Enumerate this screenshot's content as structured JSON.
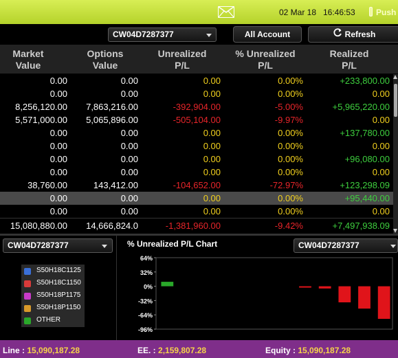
{
  "header": {
    "date": "02 Mar 18",
    "time": "16:46:53",
    "push_label": "Push"
  },
  "toolbar": {
    "account": "CW04D7287377",
    "all_account_label": "All Account",
    "refresh_label": "Refresh"
  },
  "table": {
    "columns": [
      {
        "line1": "Market",
        "line2": "Value"
      },
      {
        "line1": "Options",
        "line2": "Value"
      },
      {
        "line1": "Unrealized",
        "line2": "P/L"
      },
      {
        "line1": "% Unrealized",
        "line2": "P/L"
      },
      {
        "line1": "Realized",
        "line2": "P/L"
      }
    ],
    "rows": [
      {
        "market": "0.00",
        "options": "0.00",
        "unrealized": "0.00",
        "pct": "0.00%",
        "realized": "+233,800.00"
      },
      {
        "market": "0.00",
        "options": "0.00",
        "unrealized": "0.00",
        "pct": "0.00%",
        "realized": "0.00"
      },
      {
        "market": "8,256,120.00",
        "options": "7,863,216.00",
        "unrealized": "-392,904.00",
        "pct": "-5.00%",
        "realized": "+5,965,220.00"
      },
      {
        "market": "5,571,000.00",
        "options": "5,065,896.00",
        "unrealized": "-505,104.00",
        "pct": "-9.97%",
        "realized": "0.00"
      },
      {
        "market": "0.00",
        "options": "0.00",
        "unrealized": "0.00",
        "pct": "0.00%",
        "realized": "+137,780.00"
      },
      {
        "market": "0.00",
        "options": "0.00",
        "unrealized": "0.00",
        "pct": "0.00%",
        "realized": "0.00"
      },
      {
        "market": "0.00",
        "options": "0.00",
        "unrealized": "0.00",
        "pct": "0.00%",
        "realized": "+96,080.00"
      },
      {
        "market": "0.00",
        "options": "0.00",
        "unrealized": "0.00",
        "pct": "0.00%",
        "realized": "0.00"
      },
      {
        "market": "38,760.00",
        "options": "143,412.00",
        "unrealized": "-104,652.00",
        "pct": "-72.97%",
        "realized": "+123,298.09"
      },
      {
        "market": "0.00",
        "options": "0.00",
        "unrealized": "0.00",
        "pct": "0.00%",
        "realized": "+95,440.00"
      },
      {
        "market": "0.00",
        "options": "0.00",
        "unrealized": "0.00",
        "pct": "0.00%",
        "realized": "0.00"
      }
    ],
    "total": {
      "market": "15,080,880.00",
      "options": "14,666,824.0",
      "unrealized": "-1,381,960.00",
      "pct": "-9.42%",
      "realized": "+7,497,938.09"
    }
  },
  "left_panel": {
    "account": "CW04D7287377",
    "legend": [
      {
        "label": "S50H18C1125",
        "color": "#3a6fd8"
      },
      {
        "label": "S50H18C1150",
        "color": "#d83a3a"
      },
      {
        "label": "S50H18P1175",
        "color": "#c83ac8"
      },
      {
        "label": "S50H18P1150",
        "color": "#d89a2a"
      },
      {
        "label": "OTHER",
        "color": "#2aa82a"
      }
    ]
  },
  "chart_panel": {
    "account": "CW04D7287377"
  },
  "chart_data": {
    "type": "bar",
    "title": "% Unrealized P/L Chart",
    "ylim": [
      -96,
      64
    ],
    "yticks": [
      "64%",
      "32%",
      "0%",
      "-32%",
      "-64%",
      "-96%"
    ],
    "grid": false,
    "values": [
      10,
      0,
      0,
      0,
      0,
      0,
      0,
      -3,
      -5,
      -36,
      -50,
      -72.97
    ]
  },
  "footer": {
    "line_label": "Line :",
    "line_value": "15,090,187.28",
    "ee_label": "EE. :",
    "ee_value": "2,159,807.28",
    "equity_label": "Equity :",
    "equity_value": "15,090,187.28"
  }
}
